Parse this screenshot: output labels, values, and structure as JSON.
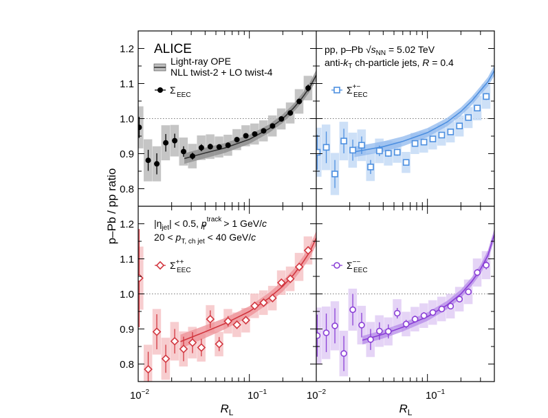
{
  "figure": {
    "ylabel": "p–Pb / pp ratio",
    "xlabel": "R",
    "xlabel_sub": "L",
    "yticks": [
      "1.2",
      "1.1",
      "1.0",
      "0.9",
      "0.8"
    ],
    "xtick_base": "10",
    "xtick_exponents": [
      "−2",
      "−1"
    ]
  },
  "annotations": {
    "experiment": "ALICE",
    "model_line1": "Light-ray OPE",
    "model_line2": "NLL twist-2 + LO twist-4",
    "system_prefix": "pp, p–Pb ",
    "system_sqrt": "√",
    "system_s": "s",
    "system_sub": "NN",
    "system_energy": " = 5.02 TeV",
    "jets_antik": "anti-",
    "jets_k": "k",
    "jets_t": "T",
    "jets_rest": " ch-particle jets, ",
    "jets_R": "R",
    "jets_Rval": " = 0.4",
    "cut1_eta_open": "|η",
    "cut1_eta_sub": "jet",
    "cut1_eta_close": "| < 0.5,   ",
    "cut1_p": "p",
    "cut1_p_sup": "track",
    "cut1_p_sub": "T",
    "cut1_rest": " > 1 GeV/",
    "cut1_c": "c",
    "cut2_pre": "20 < ",
    "cut2_p": "p",
    "cut2_sub": "T, ch jet",
    "cut2_rest": " < 40 GeV/",
    "cut2_c": "c"
  },
  "chart_data": [
    {
      "type": "scatter",
      "panel": "top-left",
      "xscale": "log",
      "xlim": [
        0.01,
        0.4
      ],
      "ylim": [
        0.75,
        1.25
      ],
      "legend": {
        "symbol": "Σ",
        "sup": "",
        "sub": "EEC"
      },
      "color": "#000000",
      "band_color": "#bbbbbb",
      "marker": "filled-circle",
      "x": [
        0.0102,
        0.0123,
        0.0147,
        0.0177,
        0.0213,
        0.0256,
        0.0308,
        0.037,
        0.0445,
        0.0535,
        0.0643,
        0.0773,
        0.093,
        0.1118,
        0.1344,
        0.1616,
        0.1943,
        0.2337,
        0.2809,
        0.3378
      ],
      "y": [
        0.975,
        0.881,
        0.871,
        0.931,
        0.937,
        0.906,
        0.893,
        0.917,
        0.92,
        0.919,
        0.924,
        0.94,
        0.951,
        0.956,
        0.965,
        0.979,
        0.999,
        1.016,
        1.049,
        1.087
      ],
      "yerr": [
        0.03,
        0.03,
        0.03,
        0.025,
        0.02,
        0.015,
        0.01,
        0.01,
        0.008,
        0.008,
        0.008,
        0.007,
        0.007,
        0.007,
        0.007,
        0.007,
        0.007,
        0.008,
        0.008,
        0.01
      ],
      "syst": [
        0.06,
        0.06,
        0.05,
        0.05,
        0.045,
        0.04,
        0.035,
        0.035,
        0.035,
        0.03,
        0.03,
        0.03,
        0.03,
        0.03,
        0.03,
        0.03,
        0.03,
        0.03,
        0.035,
        0.035
      ],
      "model_x": [
        0.026,
        0.04,
        0.06,
        0.1,
        0.15,
        0.2,
        0.25,
        0.3,
        0.35,
        0.4
      ],
      "model_y": [
        0.886,
        0.902,
        0.916,
        0.941,
        0.971,
        1.0,
        1.03,
        1.06,
        1.09,
        1.124
      ],
      "model_err": [
        0.015,
        0.015,
        0.014,
        0.013,
        0.012,
        0.012,
        0.012,
        0.012,
        0.013,
        0.015
      ],
      "model_band_color": "#888888",
      "model_line_color": "#333333"
    },
    {
      "type": "scatter",
      "panel": "top-right",
      "xscale": "log",
      "xlim": [
        0.01,
        0.4
      ],
      "ylim": [
        0.75,
        1.25
      ],
      "legend": {
        "symbol": "Σ",
        "sup": "+−",
        "sub": "EEC"
      },
      "color": "#4c8fe0",
      "band_color": "#c4dbf6",
      "marker": "open-square",
      "x": [
        0.0102,
        0.0123,
        0.0147,
        0.0177,
        0.0213,
        0.0256,
        0.0308,
        0.037,
        0.0445,
        0.0535,
        0.0643,
        0.0773,
        0.093,
        0.1118,
        0.1344,
        0.1616,
        0.1943,
        0.2337,
        0.2809,
        0.3378
      ],
      "y": [
        0.904,
        0.918,
        0.842,
        0.936,
        0.91,
        0.924,
        0.862,
        0.908,
        0.901,
        0.904,
        0.875,
        0.929,
        0.933,
        0.942,
        0.953,
        0.962,
        0.979,
        1.003,
        1.03,
        1.063
      ],
      "yerr": [
        0.05,
        0.045,
        0.04,
        0.035,
        0.03,
        0.025,
        0.02,
        0.015,
        0.01,
        0.01,
        0.008,
        0.008,
        0.008,
        0.007,
        0.007,
        0.007,
        0.007,
        0.008,
        0.008,
        0.01
      ],
      "syst": [
        0.07,
        0.065,
        0.06,
        0.055,
        0.05,
        0.045,
        0.04,
        0.035,
        0.035,
        0.03,
        0.03,
        0.03,
        0.03,
        0.03,
        0.03,
        0.03,
        0.03,
        0.03,
        0.035,
        0.035
      ],
      "model_x": [
        0.022,
        0.04,
        0.06,
        0.1,
        0.15,
        0.2,
        0.25,
        0.3,
        0.35,
        0.4
      ],
      "model_y": [
        0.905,
        0.92,
        0.935,
        0.96,
        0.99,
        1.02,
        1.05,
        1.08,
        1.105,
        1.137
      ],
      "model_err": [
        0.015,
        0.015,
        0.014,
        0.013,
        0.012,
        0.012,
        0.012,
        0.012,
        0.013,
        0.015
      ],
      "model_band_color": "#8fb8ee",
      "model_line_color": "#4c8fe0"
    },
    {
      "type": "scatter",
      "panel": "bottom-left",
      "xscale": "log",
      "xlim": [
        0.01,
        0.4
      ],
      "ylim": [
        0.75,
        1.25
      ],
      "legend": {
        "symbol": "Σ",
        "sup": "++",
        "sub": "EEC"
      },
      "color": "#d2363f",
      "band_color": "#f6c4c7",
      "marker": "open-diamond",
      "x": [
        0.0102,
        0.0123,
        0.0147,
        0.0177,
        0.0213,
        0.0256,
        0.0308,
        0.037,
        0.0445,
        0.0535,
        0.0643,
        0.0773,
        0.093,
        0.1118,
        0.1344,
        0.1616,
        0.1943,
        0.2337,
        0.2809,
        0.3378
      ],
      "y": [
        1.045,
        0.785,
        0.892,
        0.815,
        0.865,
        0.843,
        0.861,
        0.847,
        0.928,
        0.857,
        0.922,
        0.912,
        0.925,
        0.966,
        0.975,
        0.988,
        1.032,
        1.043,
        1.077,
        1.124
      ],
      "yerr": [
        0.14,
        0.05,
        0.05,
        0.04,
        0.035,
        0.035,
        0.03,
        0.025,
        0.025,
        0.02,
        0.015,
        0.012,
        0.01,
        0.01,
        0.008,
        0.008,
        0.008,
        0.008,
        0.01,
        0.012
      ],
      "syst": [
        0.09,
        0.07,
        0.065,
        0.06,
        0.055,
        0.05,
        0.045,
        0.04,
        0.04,
        0.035,
        0.035,
        0.035,
        0.035,
        0.035,
        0.035,
        0.035,
        0.035,
        0.035,
        0.04,
        0.04
      ],
      "model_x": [
        0.024,
        0.04,
        0.06,
        0.1,
        0.15,
        0.2,
        0.25,
        0.3,
        0.35,
        0.4
      ],
      "model_y": [
        0.864,
        0.892,
        0.915,
        0.95,
        0.988,
        1.022,
        1.055,
        1.088,
        1.12,
        1.16
      ],
      "model_err": [
        0.02,
        0.018,
        0.016,
        0.015,
        0.015,
        0.015,
        0.015,
        0.016,
        0.017,
        0.02
      ],
      "model_band_color": "#ee8f95",
      "model_line_color": "#d2363f"
    },
    {
      "type": "scatter",
      "panel": "bottom-right",
      "xscale": "log",
      "xlim": [
        0.01,
        0.4
      ],
      "ylim": [
        0.75,
        1.25
      ],
      "legend": {
        "symbol": "Σ",
        "sup": "−−",
        "sub": "EEC"
      },
      "color": "#8a3fd6",
      "band_color": "#e0cdf5",
      "marker": "open-circle",
      "x": [
        0.0102,
        0.0123,
        0.0147,
        0.0177,
        0.0213,
        0.0256,
        0.0308,
        0.037,
        0.0445,
        0.0535,
        0.0643,
        0.0773,
        0.093,
        0.1118,
        0.1344,
        0.1616,
        0.1943,
        0.2337,
        0.2809,
        0.3378
      ],
      "y": [
        0.881,
        0.889,
        0.909,
        0.83,
        0.955,
        0.911,
        0.87,
        0.894,
        0.893,
        0.945,
        0.914,
        0.928,
        0.938,
        0.947,
        0.957,
        0.965,
        0.985,
        1.006,
        1.061,
        1.082
      ],
      "yerr": [
        0.06,
        0.055,
        0.05,
        0.05,
        0.045,
        0.035,
        0.03,
        0.025,
        0.02,
        0.015,
        0.012,
        0.01,
        0.01,
        0.008,
        0.008,
        0.008,
        0.008,
        0.008,
        0.01,
        0.012
      ],
      "syst": [
        0.08,
        0.075,
        0.07,
        0.065,
        0.06,
        0.055,
        0.05,
        0.045,
        0.04,
        0.04,
        0.035,
        0.035,
        0.035,
        0.035,
        0.035,
        0.035,
        0.035,
        0.035,
        0.04,
        0.04
      ],
      "model_x": [
        0.026,
        0.04,
        0.06,
        0.1,
        0.15,
        0.2,
        0.25,
        0.3,
        0.35,
        0.4
      ],
      "model_y": [
        0.868,
        0.885,
        0.905,
        0.935,
        0.968,
        1.0,
        1.035,
        1.07,
        1.11,
        1.17
      ],
      "model_err": [
        0.012,
        0.012,
        0.012,
        0.012,
        0.012,
        0.012,
        0.012,
        0.013,
        0.014,
        0.016
      ],
      "model_band_color": "#b48ae8",
      "model_line_color": "#8a3fd6"
    }
  ]
}
